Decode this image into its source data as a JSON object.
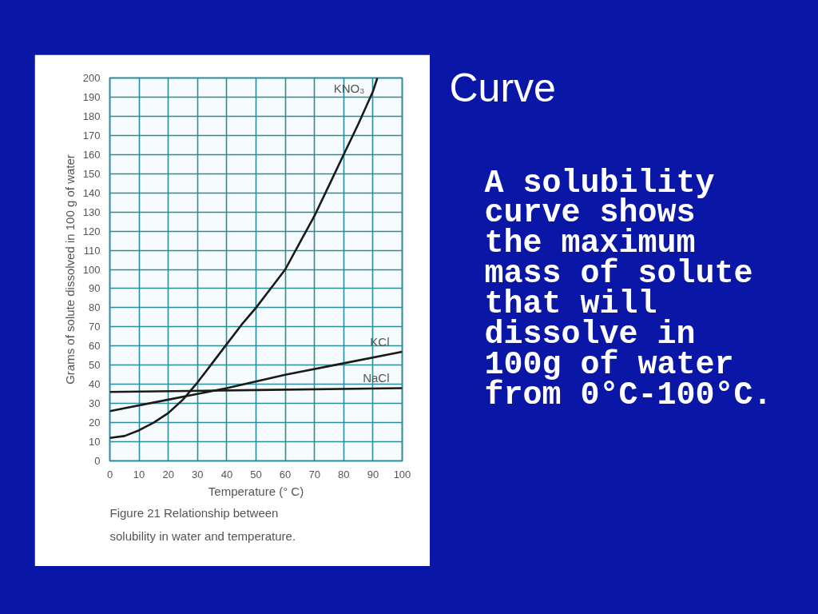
{
  "chart_data": [
    {
      "type": "line",
      "xlabel": "Temperature (° C)",
      "ylabel": "Grams of solute dissolved in 100 g of water",
      "annotations": [
        "Figure 21 Relationship between solubility in water and temperature."
      ],
      "xlim": [
        0,
        100
      ],
      "ylim": [
        0,
        200
      ],
      "xticks": [
        0,
        10,
        20,
        30,
        40,
        50,
        60,
        70,
        80,
        90,
        100
      ],
      "yticks": [
        0,
        10,
        20,
        30,
        40,
        50,
        60,
        70,
        80,
        90,
        100,
        110,
        120,
        130,
        140,
        150,
        160,
        170,
        180,
        190,
        200
      ],
      "grid": true,
      "line_style": "solid",
      "series": [
        {
          "name": "KNO₃",
          "color": "#1a1a1a",
          "x": [
            0,
            5,
            10,
            15,
            20,
            25,
            30,
            35,
            40,
            45,
            50,
            55,
            60,
            65,
            70,
            75,
            80,
            85,
            90,
            91.5
          ],
          "values": [
            12,
            13,
            16,
            20,
            25,
            32,
            41,
            51,
            61,
            71,
            80,
            90,
            100,
            114,
            128,
            144,
            160,
            176,
            193,
            200
          ]
        },
        {
          "name": "KCl",
          "color": "#1a1a1a",
          "x": [
            0,
            20,
            40,
            60,
            80,
            100
          ],
          "values": [
            26,
            32,
            38,
            45,
            51,
            57
          ]
        },
        {
          "name": "NaCl",
          "color": "#1a1a1a",
          "x": [
            0,
            50,
            100
          ],
          "values": [
            36,
            37,
            38
          ]
        }
      ]
    },
    {
      "type": "other",
      "title": "Curve",
      "annotations": [
        "A solubility\ncurve shows\nthe maximum\nmass of solute\nthat will\ndissolve in\n100g of water\nfrom 0°C-100°C."
      ]
    }
  ]
}
